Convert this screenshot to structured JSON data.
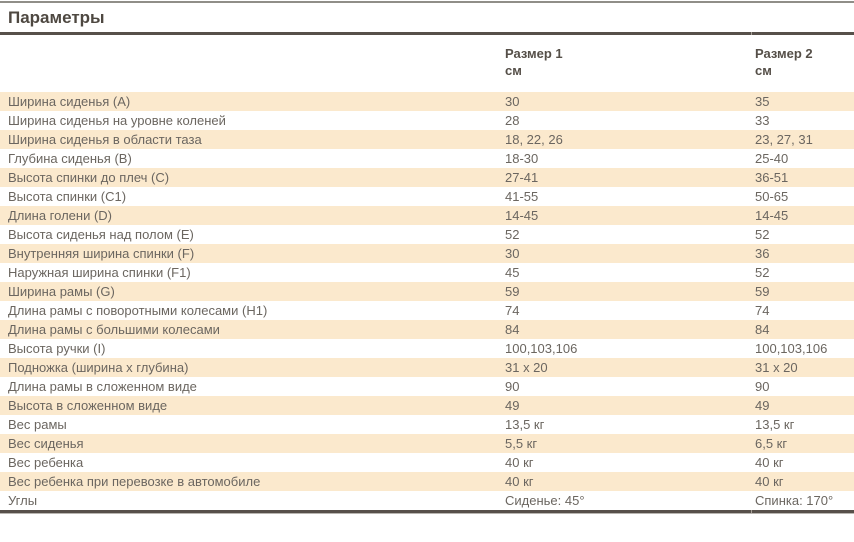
{
  "page": {
    "title": "Параметры"
  },
  "table": {
    "columns": [
      {
        "label": "",
        "unit": ""
      },
      {
        "label": "Размер 1",
        "unit": "см"
      },
      {
        "label": "Размер 2",
        "unit": "см"
      }
    ],
    "rows": [
      {
        "label": "Ширина сиденья (А)",
        "size1": "30",
        "size2": "35"
      },
      {
        "label": "Ширина сиденья на уровне коленей",
        "size1": "28",
        "size2": "33"
      },
      {
        "label": "Ширина сиденья в области таза",
        "size1": "18, 22, 26",
        "size2": "23, 27, 31"
      },
      {
        "label": "Глубина сиденья (В)",
        "size1": "18-30",
        "size2": "25-40"
      },
      {
        "label": "Высота спинки до плеч (С)",
        "size1": "27-41",
        "size2": "36-51"
      },
      {
        "label": "Высота спинки (С1)",
        "size1": "41-55",
        "size2": "50-65"
      },
      {
        "label": "Длина голени (D)",
        "size1": "14-45",
        "size2": "14-45"
      },
      {
        "label": "Высота сиденья над полом (Е)",
        "size1": "52",
        "size2": "52"
      },
      {
        "label": "Внутренняя ширина спинки (F)",
        "size1": "30",
        "size2": "36"
      },
      {
        "label": "Наружная ширина спинки (F1)",
        "size1": "45",
        "size2": "52"
      },
      {
        "label": "Ширина рамы (G)",
        "size1": "59",
        "size2": "59"
      },
      {
        "label": "Длина рамы с поворотными колесами (Н1)",
        "size1": "74",
        "size2": "74"
      },
      {
        "label": "Длина рамы с большими колесами",
        "size1": "84",
        "size2": "84"
      },
      {
        "label": "Высота ручки (I)",
        "size1": "100,103,106",
        "size2": "100,103,106"
      },
      {
        "label": "Подножка (ширина х глубина)",
        "size1": "31 x 20",
        "size2": "31 x 20"
      },
      {
        "label": "Длина рамы в сложенном виде",
        "size1": "90",
        "size2": "90"
      },
      {
        "label": "Высота в сложенном виде",
        "size1": "49",
        "size2": "49"
      },
      {
        "label": "Вес рамы",
        "size1": "13,5 кг",
        "size2": "13,5 кг"
      },
      {
        "label": "Вес сиденья",
        "size1": "5,5 кг",
        "size2": "6,5 кг"
      },
      {
        "label": "Вес ребенка",
        "size1": "40 кг",
        "size2": "40 кг"
      },
      {
        "label": "Вес ребенка при перевозке в автомобиле",
        "size1": "40 кг",
        "size2": "40 кг"
      },
      {
        "label": "Углы",
        "size1": "Сиденье: 45°",
        "size2": "Спинка: 170°"
      }
    ]
  },
  "colors": {
    "row_highlight": "#fbe9cd",
    "text": "#6b6660",
    "heading_text": "#4e4841",
    "rule_dark": "#57504a",
    "rule_light": "#908e88"
  }
}
